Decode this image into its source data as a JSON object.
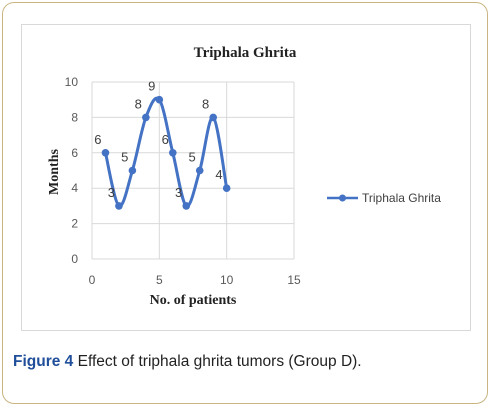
{
  "caption": {
    "label": "Figure 4",
    "text": "Effect of triphala ghrita tumors (Group D)."
  },
  "chart_data": {
    "type": "line",
    "title": "Triphala Ghrita",
    "xlabel": "No. of patients",
    "ylabel": "Months",
    "xlim": [
      0,
      15
    ],
    "ylim": [
      0,
      10
    ],
    "xticks": [
      0,
      5,
      10,
      15
    ],
    "yticks": [
      0,
      2,
      4,
      6,
      8,
      10
    ],
    "grid": true,
    "smooth": true,
    "legend_position": "right",
    "series": [
      {
        "name": "Triphala Ghrita",
        "color": "#4472c4",
        "x": [
          1,
          2,
          3,
          4,
          5,
          6,
          7,
          8,
          9,
          10
        ],
        "y": [
          6,
          3,
          5,
          8,
          9,
          6,
          3,
          5,
          8,
          4
        ],
        "labels": [
          "6",
          "3",
          "5",
          "8",
          "9",
          "6",
          "3",
          "5",
          "8",
          "4"
        ]
      }
    ]
  }
}
